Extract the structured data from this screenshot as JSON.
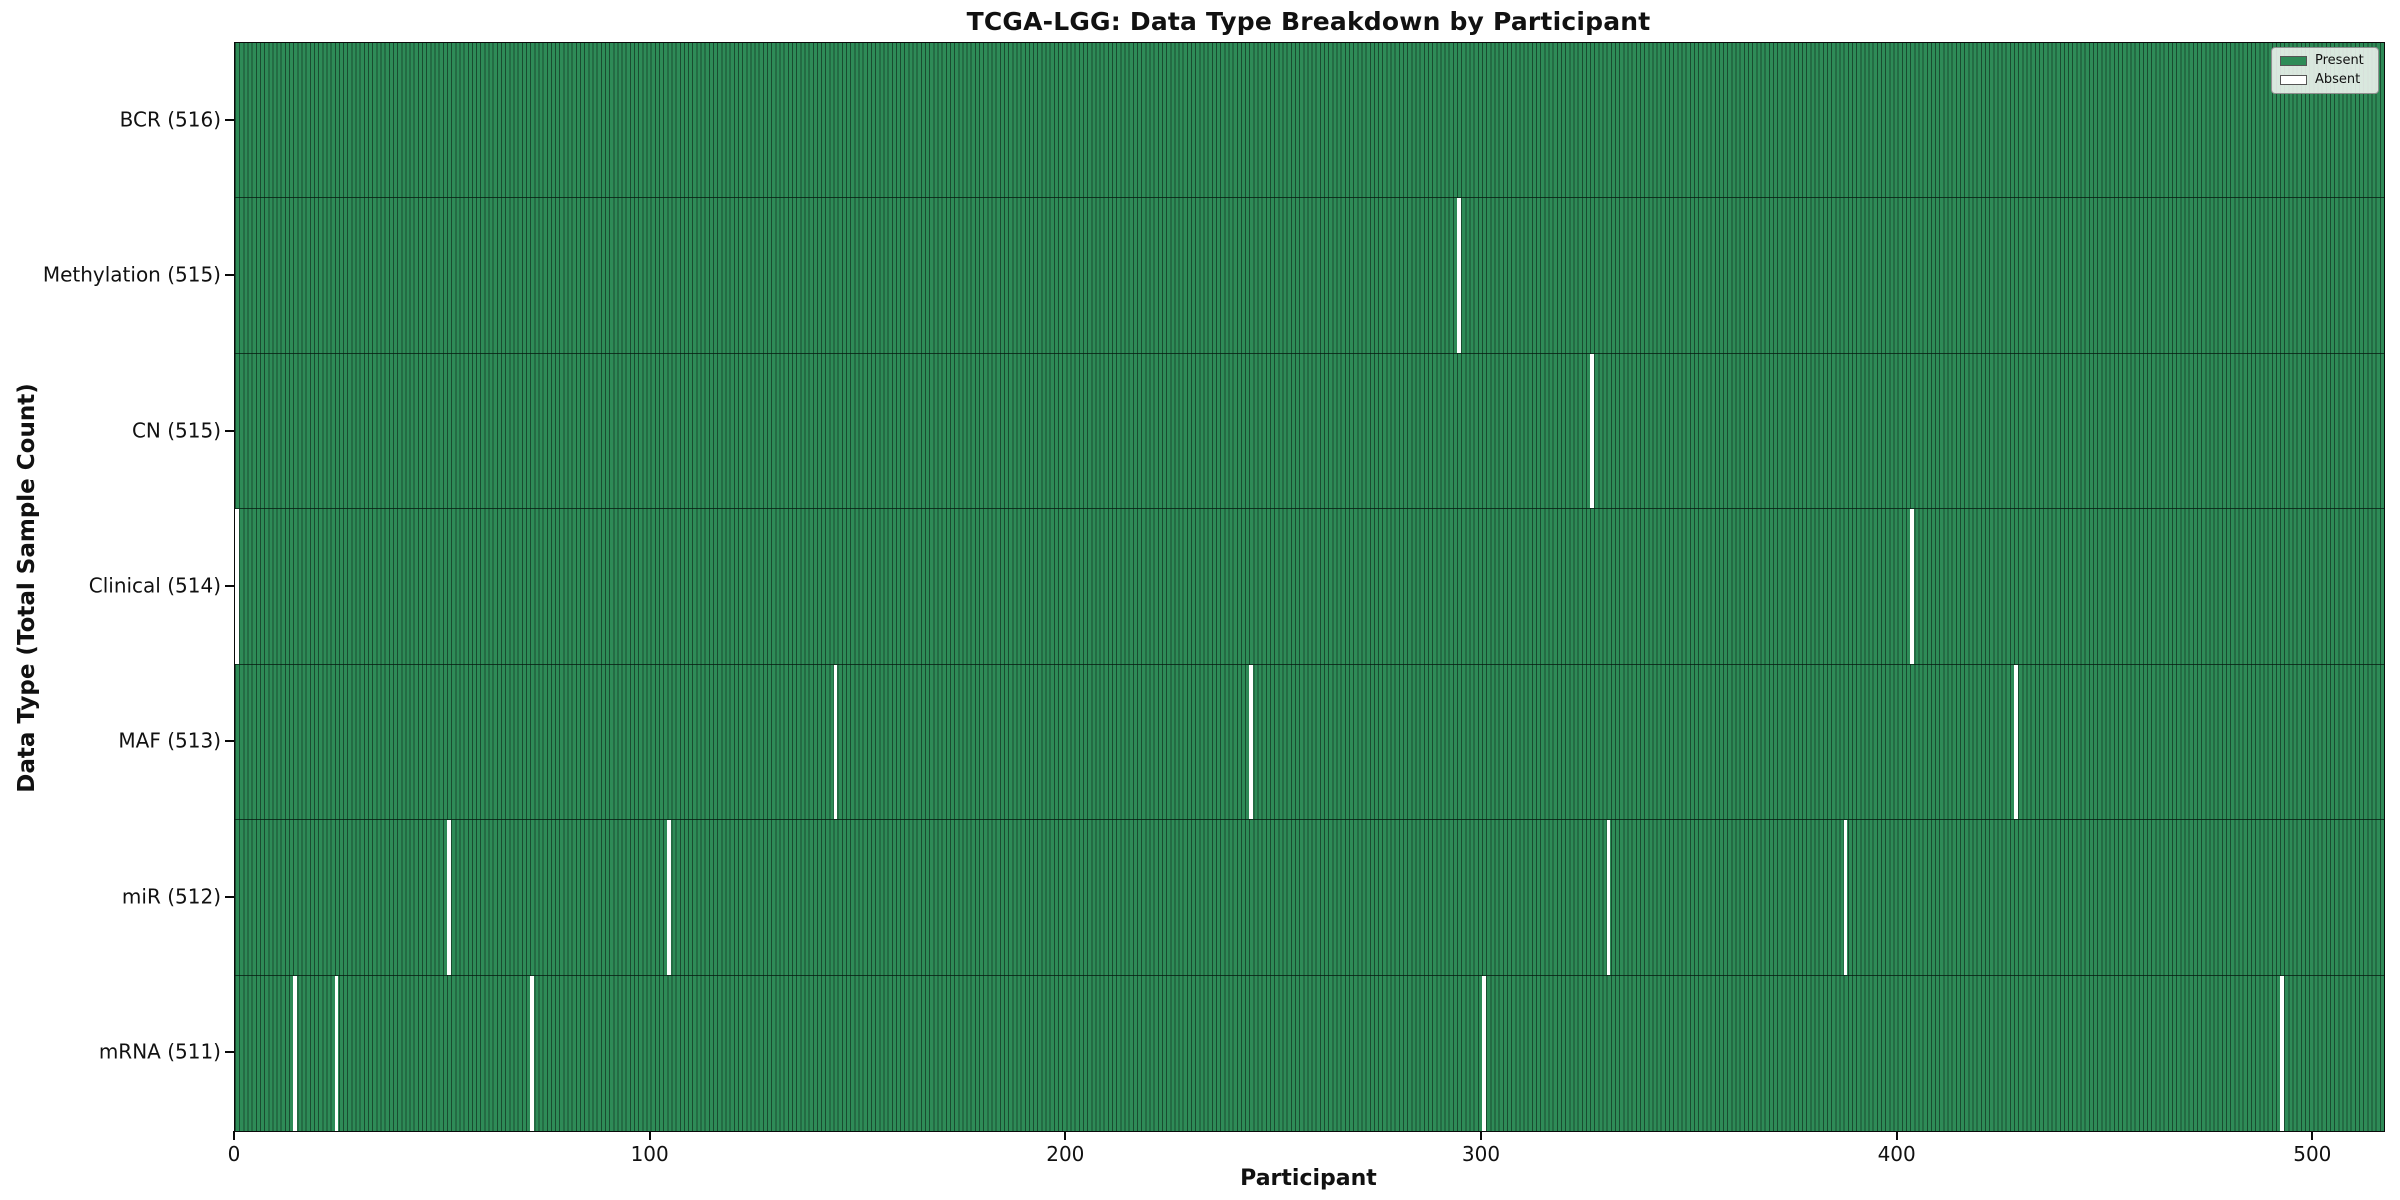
{
  "chart_data": {
    "type": "heatmap",
    "title": "TCGA-LGG: Data Type Breakdown by Participant",
    "xlabel": "Participant",
    "ylabel": "Data Type (Total Sample Count)",
    "n_participants": 516,
    "xlim": [
      0,
      517
    ],
    "x_ticks": [
      0,
      100,
      200,
      300,
      400,
      500
    ],
    "grid": false,
    "legend_position": "upper right",
    "legend_labels": {
      "present": "Present",
      "absent": "Absent"
    },
    "colors": {
      "present": "#2e8b57",
      "absent": "#ffffff",
      "bar_edge": "rgba(0,0,0,0.45)",
      "row_divider": "rgba(5,25,15,0.75)"
    },
    "rows": [
      {
        "name": "bcr",
        "label": "BCR (516)",
        "data_type": "BCR",
        "total": 516,
        "absent_participants": []
      },
      {
        "name": "methylation",
        "label": "Methylation (515)",
        "data_type": "Methylation",
        "total": 515,
        "absent_participants": [
          294
        ]
      },
      {
        "name": "cn",
        "label": "CN (515)",
        "data_type": "CN",
        "total": 515,
        "absent_participants": [
          326
        ]
      },
      {
        "name": "clinical",
        "label": "Clinical (514)",
        "data_type": "Clinical",
        "total": 514,
        "absent_participants": [
          0,
          403
        ]
      },
      {
        "name": "maf",
        "label": "MAF (513)",
        "data_type": "MAF",
        "total": 513,
        "absent_participants": [
          144,
          244,
          428
        ]
      },
      {
        "name": "mir",
        "label": "miR (512)",
        "data_type": "miR",
        "total": 512,
        "absent_participants": [
          51,
          104,
          330,
          387
        ]
      },
      {
        "name": "mrna",
        "label": "mRNA (511)",
        "data_type": "mRNA",
        "total": 511,
        "absent_participants": [
          14,
          24,
          71,
          300,
          492
        ]
      }
    ]
  }
}
